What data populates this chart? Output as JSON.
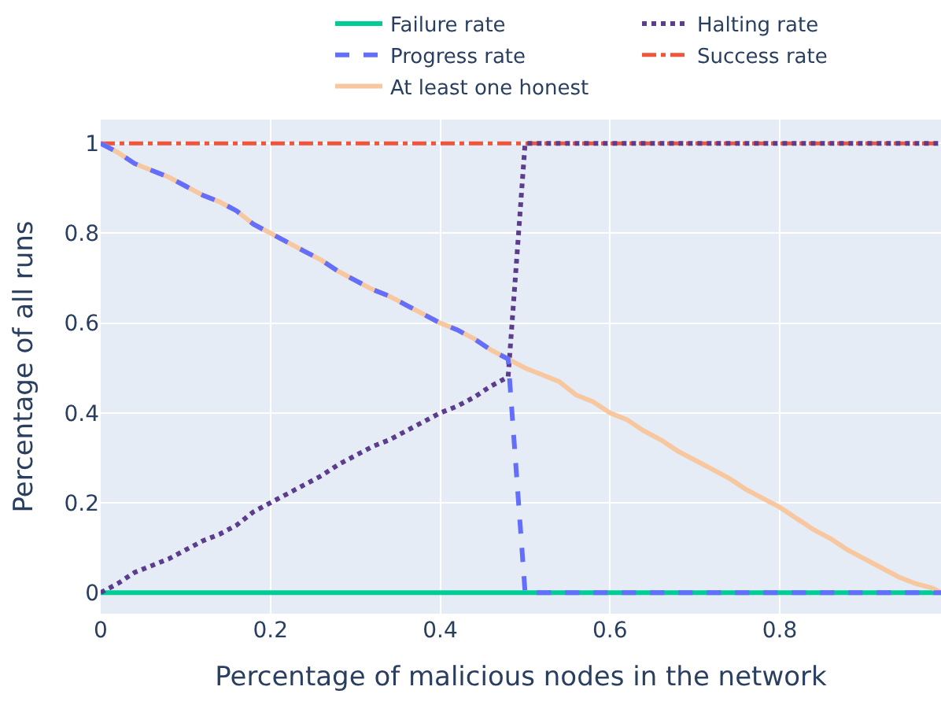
{
  "chart_data": {
    "type": "line",
    "xlabel": "Percentage of malicious nodes in the network",
    "ylabel": "Percentage of all runs",
    "x": [
      0,
      0.02,
      0.04,
      0.06,
      0.08,
      0.1,
      0.12,
      0.14,
      0.16,
      0.18,
      0.2,
      0.22,
      0.24,
      0.26,
      0.28,
      0.3,
      0.32,
      0.34,
      0.36,
      0.38,
      0.4,
      0.42,
      0.44,
      0.46,
      0.48,
      0.5,
      0.52,
      0.54,
      0.56,
      0.58,
      0.6,
      0.62,
      0.64,
      0.66,
      0.68,
      0.7,
      0.72,
      0.74,
      0.76,
      0.78,
      0.8,
      0.82,
      0.84,
      0.86,
      0.88,
      0.9,
      0.92,
      0.94,
      0.96,
      0.98,
      0.99
    ],
    "series": [
      {
        "name": "Failure rate",
        "color": "#00cc96",
        "line_style": "solid",
        "values": [
          0,
          0,
          0,
          0,
          0,
          0,
          0,
          0,
          0,
          0,
          0,
          0,
          0,
          0,
          0,
          0,
          0,
          0,
          0,
          0,
          0,
          0,
          0,
          0,
          0,
          0,
          0,
          0,
          0,
          0,
          0,
          0,
          0,
          0,
          0,
          0,
          0,
          0,
          0,
          0,
          0,
          0,
          0,
          0,
          0,
          0,
          0,
          0,
          0,
          0,
          0
        ]
      },
      {
        "name": "Success rate",
        "color": "#ef553b",
        "line_style": "dashdot",
        "values": [
          1,
          1,
          1,
          1,
          1,
          1,
          1,
          1,
          1,
          1,
          1,
          1,
          1,
          1,
          1,
          1,
          1,
          1,
          1,
          1,
          1,
          1,
          1,
          1,
          1,
          1,
          1,
          1,
          1,
          1,
          1,
          1,
          1,
          1,
          1,
          1,
          1,
          1,
          1,
          1,
          1,
          1,
          1,
          1,
          1,
          1,
          1,
          1,
          1,
          1,
          1
        ]
      },
      {
        "name": "Halting rate",
        "color": "#5c3c8c",
        "line_style": "dotted",
        "values": [
          0,
          0.02,
          0.045,
          0.06,
          0.075,
          0.095,
          0.115,
          0.13,
          0.15,
          0.18,
          0.2,
          0.22,
          0.24,
          0.26,
          0.285,
          0.305,
          0.325,
          0.34,
          0.36,
          0.38,
          0.4,
          0.415,
          0.435,
          0.46,
          0.48,
          1,
          1,
          1,
          1,
          1,
          1,
          1,
          1,
          1,
          1,
          1,
          1,
          1,
          1,
          1,
          1,
          1,
          1,
          1,
          1,
          1,
          1,
          1,
          1,
          1,
          1
        ]
      },
      {
        "name": "At least one honest",
        "color": "#f7c8a0",
        "line_style": "solid",
        "values": [
          1,
          0.98,
          0.955,
          0.94,
          0.925,
          0.905,
          0.885,
          0.87,
          0.85,
          0.82,
          0.8,
          0.78,
          0.76,
          0.74,
          0.715,
          0.695,
          0.675,
          0.66,
          0.64,
          0.62,
          0.6,
          0.585,
          0.565,
          0.54,
          0.52,
          0.5,
          0.485,
          0.47,
          0.44,
          0.425,
          0.4,
          0.385,
          0.36,
          0.34,
          0.315,
          0.295,
          0.275,
          0.255,
          0.23,
          0.21,
          0.19,
          0.165,
          0.14,
          0.12,
          0.095,
          0.075,
          0.055,
          0.035,
          0.02,
          0.01,
          0
        ]
      },
      {
        "name": "Progress rate",
        "color": "#636efa",
        "line_style": "dashed",
        "values": [
          1,
          0.98,
          0.955,
          0.94,
          0.925,
          0.905,
          0.885,
          0.87,
          0.85,
          0.82,
          0.8,
          0.78,
          0.76,
          0.74,
          0.715,
          0.695,
          0.675,
          0.66,
          0.64,
          0.62,
          0.6,
          0.585,
          0.565,
          0.54,
          0.52,
          0,
          0,
          0,
          0,
          0,
          0,
          0,
          0,
          0,
          0,
          0,
          0,
          0,
          0,
          0,
          0,
          0,
          0,
          0,
          0,
          0,
          0,
          0,
          0,
          0,
          0
        ]
      }
    ],
    "xlim": [
      0,
      0.99
    ],
    "xticks": [
      0,
      0.2,
      0.4,
      0.6,
      0.8
    ],
    "ylim": [
      -0.047,
      1.053
    ],
    "yticks": [
      0,
      0.2,
      0.4,
      0.6,
      0.8,
      1
    ],
    "grid": true,
    "legend": "top",
    "marker": "none"
  }
}
